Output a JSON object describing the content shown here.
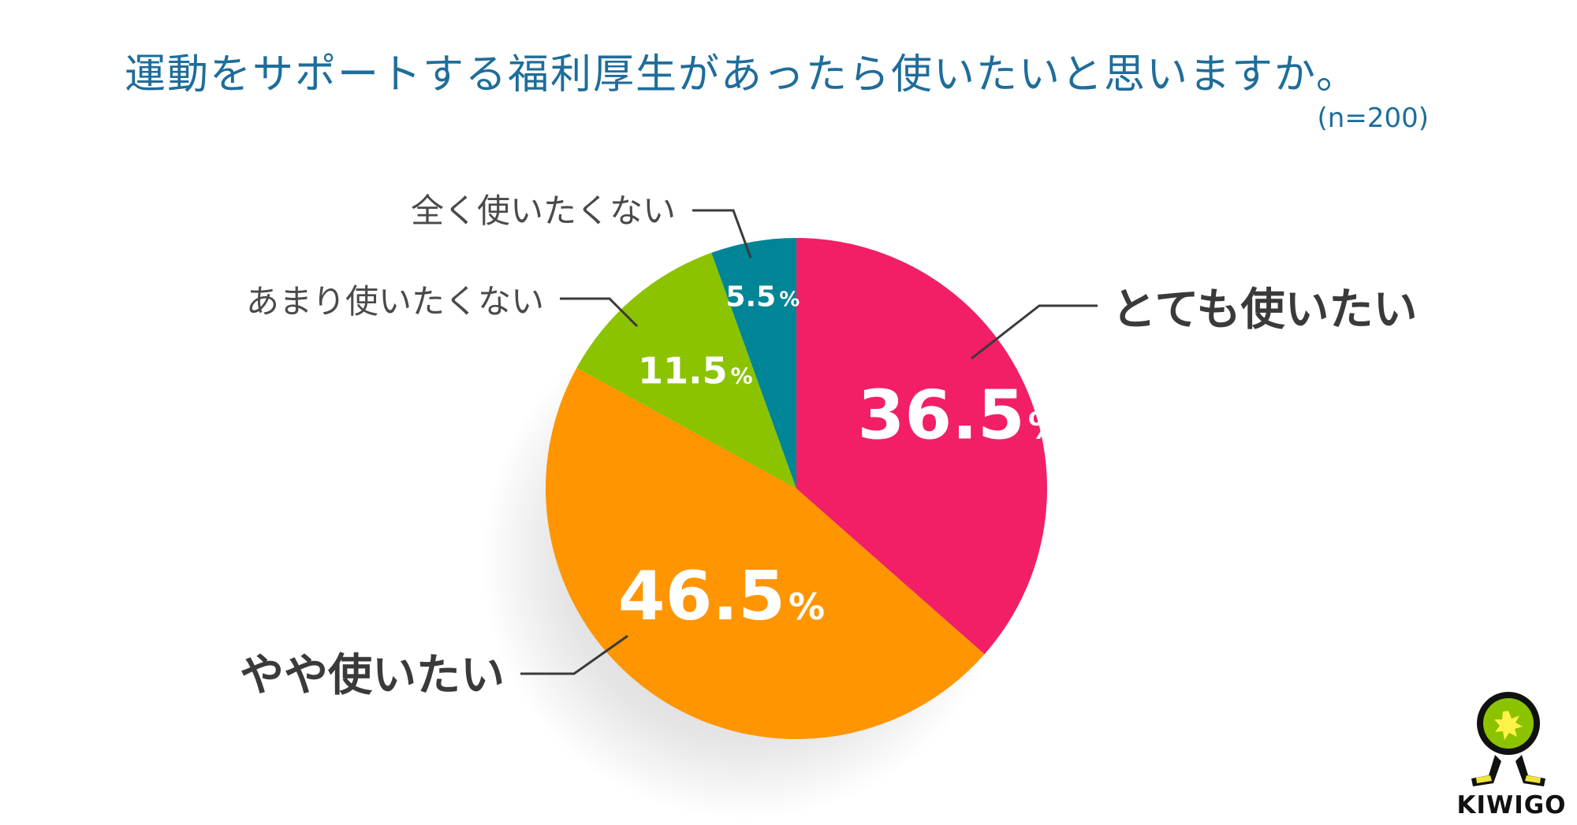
{
  "title": "運動をサポートする福利厚生があったら使いたいと思いますか。",
  "sample_note": "(n=200)",
  "logo_text": "KIWIGO",
  "chart_data": {
    "type": "pie",
    "title": "運動をサポートする福利厚生があったら使いたいと思いますか。",
    "categories": [
      "とても使いたい",
      "やや使いたい",
      "あまり使いたくない",
      "全く使いたくない"
    ],
    "values": [
      36.5,
      46.5,
      11.5,
      5.5
    ],
    "value_labels": [
      "36.5",
      "46.5",
      "11.5",
      "5.5"
    ],
    "unit": "%",
    "colors": [
      "#f21f66",
      "#ff9500",
      "#8bc300",
      "#008596"
    ],
    "start": "12 o'clock",
    "direction": "clockwise"
  }
}
